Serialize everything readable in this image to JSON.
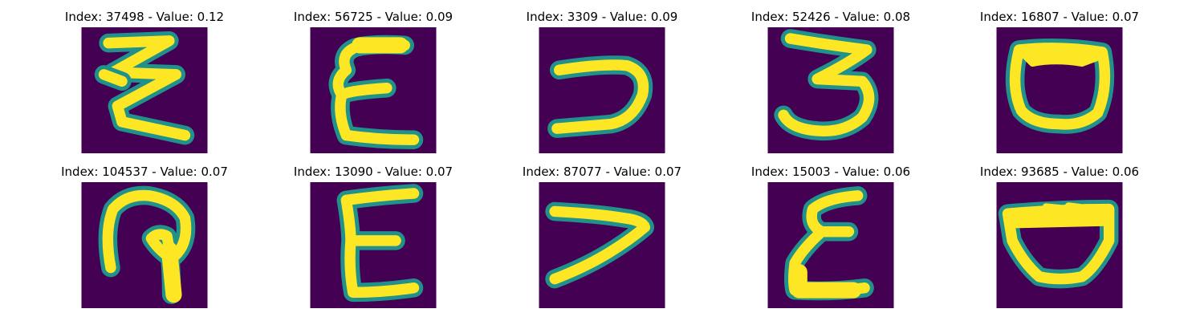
{
  "palette": {
    "background": "#440154",
    "mid": "#21918c",
    "stroke": "#fde725"
  },
  "samples": [
    {
      "title": "Index: 37498 - Value: 0.12",
      "glyph": "zigzag-3"
    },
    {
      "title": "Index: 56725 - Value: 0.09",
      "glyph": "epsilon-E"
    },
    {
      "title": "Index: 3309 - Value: 0.09",
      "glyph": "reversed-c"
    },
    {
      "title": "Index: 52426 - Value: 0.08",
      "glyph": "three"
    },
    {
      "title": "Index: 16807 - Value: 0.07",
      "glyph": "cup-o"
    },
    {
      "title": "Index: 104537 - Value: 0.07",
      "glyph": "hook-p"
    },
    {
      "title": "Index: 13090 - Value: 0.07",
      "glyph": "block-E"
    },
    {
      "title": "Index: 87077 - Value: 0.07",
      "glyph": "seven"
    },
    {
      "title": "Index: 15003 - Value: 0.06",
      "glyph": "script-E"
    },
    {
      "title": "Index: 93685 - Value: 0.06",
      "glyph": "pot"
    }
  ]
}
